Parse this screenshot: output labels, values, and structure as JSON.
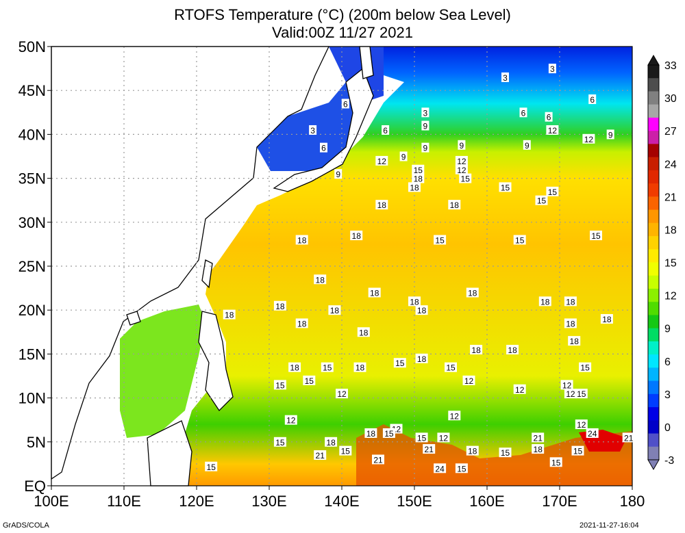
{
  "title_line1": "RTOFS Temperature (°C) (200m below Sea Level)",
  "title_line2": "Valid:00Z 11/27 2021",
  "footer_left": "GrADS/COLA",
  "footer_right": "2021-11-27-16:04",
  "map": {
    "lon_range": [
      100,
      180
    ],
    "lat_range": [
      0,
      50
    ],
    "lon_ticks": [
      "100E",
      "110E",
      "120E",
      "130E",
      "140E",
      "150E",
      "160E",
      "170E",
      "180"
    ],
    "lat_ticks": [
      "EQ",
      "5N",
      "10N",
      "15N",
      "20N",
      "25N",
      "30N",
      "35N",
      "40N",
      "45N",
      "50N"
    ],
    "grid": "dotted gray every 10° lon and 5° lat",
    "contour_labels": [
      {
        "v": "3",
        "lon": 136.0,
        "lat": 40.5
      },
      {
        "v": "6",
        "lon": 137.5,
        "lat": 38.5
      },
      {
        "v": "6",
        "lon": 140.5,
        "lat": 43.5
      },
      {
        "v": "6",
        "lon": 146.0,
        "lat": 40.5
      },
      {
        "v": "3",
        "lon": 151.5,
        "lat": 42.5
      },
      {
        "v": "9",
        "lon": 151.5,
        "lat": 41.0
      },
      {
        "v": "3",
        "lon": 162.5,
        "lat": 46.5
      },
      {
        "v": "3",
        "lon": 169.0,
        "lat": 47.5
      },
      {
        "v": "6",
        "lon": 165.0,
        "lat": 42.5
      },
      {
        "v": "6",
        "lon": 168.5,
        "lat": 42.0
      },
      {
        "v": "6",
        "lon": 174.5,
        "lat": 44.0
      },
      {
        "v": "12",
        "lon": 169.0,
        "lat": 40.5
      },
      {
        "v": "12",
        "lon": 174.0,
        "lat": 39.5
      },
      {
        "v": "9",
        "lon": 177.0,
        "lat": 40.0
      },
      {
        "v": "9",
        "lon": 148.5,
        "lat": 37.5
      },
      {
        "v": "9",
        "lon": 151.5,
        "lat": 38.5
      },
      {
        "v": "9",
        "lon": 156.5,
        "lat": 38.8
      },
      {
        "v": "9",
        "lon": 165.5,
        "lat": 38.8
      },
      {
        "v": "12",
        "lon": 145.5,
        "lat": 37.0
      },
      {
        "v": "15",
        "lon": 150.5,
        "lat": 36.0
      },
      {
        "v": "12",
        "lon": 156.5,
        "lat": 37.0
      },
      {
        "v": "12",
        "lon": 156.5,
        "lat": 36.0
      },
      {
        "v": "15",
        "lon": 157.0,
        "lat": 35.0
      },
      {
        "v": "18",
        "lon": 150.5,
        "lat": 35.0
      },
      {
        "v": "18",
        "lon": 150.0,
        "lat": 34.0
      },
      {
        "v": "18",
        "lon": 145.5,
        "lat": 32.0
      },
      {
        "v": "18",
        "lon": 155.5,
        "lat": 32.0
      },
      {
        "v": "15",
        "lon": 162.5,
        "lat": 34.0
      },
      {
        "v": "15",
        "lon": 169.0,
        "lat": 33.5
      },
      {
        "v": "15",
        "lon": 167.5,
        "lat": 32.5
      },
      {
        "v": "9",
        "lon": 139.5,
        "lat": 35.5
      },
      {
        "v": "18",
        "lon": 134.5,
        "lat": 28.0
      },
      {
        "v": "18",
        "lon": 142.0,
        "lat": 28.5
      },
      {
        "v": "15",
        "lon": 153.5,
        "lat": 28.0
      },
      {
        "v": "15",
        "lon": 164.5,
        "lat": 28.0
      },
      {
        "v": "15",
        "lon": 175.0,
        "lat": 28.5
      },
      {
        "v": "18",
        "lon": 137.0,
        "lat": 23.5
      },
      {
        "v": "18",
        "lon": 131.5,
        "lat": 20.5
      },
      {
        "v": "18",
        "lon": 124.5,
        "lat": 19.5
      },
      {
        "v": "18",
        "lon": 134.5,
        "lat": 18.5
      },
      {
        "v": "18",
        "lon": 139.0,
        "lat": 20.0
      },
      {
        "v": "18",
        "lon": 144.5,
        "lat": 22.0
      },
      {
        "v": "18",
        "lon": 150.0,
        "lat": 21.0
      },
      {
        "v": "18",
        "lon": 151.0,
        "lat": 20.0
      },
      {
        "v": "18",
        "lon": 158.0,
        "lat": 22.0
      },
      {
        "v": "18",
        "lon": 168.0,
        "lat": 21.0
      },
      {
        "v": "18",
        "lon": 171.5,
        "lat": 21.0
      },
      {
        "v": "18",
        "lon": 171.5,
        "lat": 18.5
      },
      {
        "v": "18",
        "lon": 176.5,
        "lat": 19.0
      },
      {
        "v": "18",
        "lon": 172.0,
        "lat": 16.5
      },
      {
        "v": "18",
        "lon": 143.0,
        "lat": 17.5
      },
      {
        "v": "18",
        "lon": 158.5,
        "lat": 15.5
      },
      {
        "v": "18",
        "lon": 163.5,
        "lat": 15.5
      },
      {
        "v": "18",
        "lon": 151.0,
        "lat": 14.5
      },
      {
        "v": "18",
        "lon": 133.5,
        "lat": 13.5
      },
      {
        "v": "18",
        "lon": 142.5,
        "lat": 13.5
      },
      {
        "v": "15",
        "lon": 138.0,
        "lat": 13.5
      },
      {
        "v": "15",
        "lon": 135.5,
        "lat": 12.0
      },
      {
        "v": "15",
        "lon": 148.0,
        "lat": 14.0
      },
      {
        "v": "15",
        "lon": 155.0,
        "lat": 13.5
      },
      {
        "v": "15",
        "lon": 131.5,
        "lat": 11.5
      },
      {
        "v": "15",
        "lon": 173.5,
        "lat": 13.5
      },
      {
        "v": "12",
        "lon": 157.5,
        "lat": 12.0
      },
      {
        "v": "12",
        "lon": 164.5,
        "lat": 11.0
      },
      {
        "v": "12",
        "lon": 171.0,
        "lat": 11.5
      },
      {
        "v": "12",
        "lon": 171.5,
        "lat": 10.5
      },
      {
        "v": "15",
        "lon": 173.0,
        "lat": 10.5
      },
      {
        "v": "12",
        "lon": 140.0,
        "lat": 10.5
      },
      {
        "v": "12",
        "lon": 133.0,
        "lat": 7.5
      },
      {
        "v": "12",
        "lon": 155.5,
        "lat": 8.0
      },
      {
        "v": "12",
        "lon": 173.0,
        "lat": 7.0
      },
      {
        "v": "12",
        "lon": 147.5,
        "lat": 6.5
      },
      {
        "v": "12",
        "lon": 154.0,
        "lat": 5.5
      },
      {
        "v": "18",
        "lon": 144.0,
        "lat": 6.0
      },
      {
        "v": "15",
        "lon": 146.5,
        "lat": 6.0
      },
      {
        "v": "15",
        "lon": 151.0,
        "lat": 5.5
      },
      {
        "v": "18",
        "lon": 138.5,
        "lat": 5.0
      },
      {
        "v": "15",
        "lon": 131.5,
        "lat": 5.0
      },
      {
        "v": "21",
        "lon": 137.0,
        "lat": 3.5
      },
      {
        "v": "15",
        "lon": 140.5,
        "lat": 4.0
      },
      {
        "v": "21",
        "lon": 145.0,
        "lat": 3.0
      },
      {
        "v": "21",
        "lon": 152.0,
        "lat": 4.2
      },
      {
        "v": "18",
        "lon": 158.0,
        "lat": 4.0
      },
      {
        "v": "15",
        "lon": 162.5,
        "lat": 3.8
      },
      {
        "v": "21",
        "lon": 167.0,
        "lat": 5.5
      },
      {
        "v": "18",
        "lon": 167.0,
        "lat": 4.2
      },
      {
        "v": "24",
        "lon": 174.5,
        "lat": 6.0
      },
      {
        "v": "21",
        "lon": 179.5,
        "lat": 5.5
      },
      {
        "v": "15",
        "lon": 172.5,
        "lat": 4.0
      },
      {
        "v": "15",
        "lon": 169.5,
        "lat": 2.7
      },
      {
        "v": "15",
        "lon": 122.0,
        "lat": 2.2
      },
      {
        "v": "24",
        "lon": 153.5,
        "lat": 2.0
      },
      {
        "v": "15",
        "lon": 156.5,
        "lat": 2.0
      }
    ]
  },
  "colorbar": {
    "labels": [
      "33",
      "30",
      "27",
      "24",
      "21",
      "18",
      "15",
      "12",
      "9",
      "6",
      "3",
      "0",
      "-3"
    ],
    "colors": [
      "#1a1a1a",
      "#4d4d4d",
      "#808080",
      "#a6a6a6",
      "#ff00ff",
      "#cc1fa8",
      "#a50000",
      "#c81e00",
      "#e12800",
      "#f03c00",
      "#fa6400",
      "#ff9600",
      "#ffb400",
      "#ffd200",
      "#ffeb00",
      "#f0ff00",
      "#c8ff00",
      "#8cf000",
      "#50dc00",
      "#14c814",
      "#00dc64",
      "#00f0c8",
      "#00e6ff",
      "#00b4ff",
      "#0078ff",
      "#003cff",
      "#0000e6",
      "#0000c8",
      "#5050c8",
      "#8080b4"
    ]
  }
}
